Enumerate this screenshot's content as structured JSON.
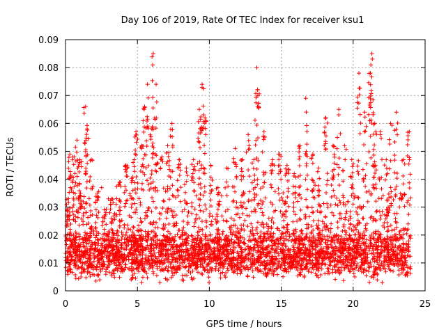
{
  "chart_data": {
    "type": "scatter",
    "title": "Day 106 of 2019, Rate Of TEC Index for receiver ksu1",
    "xlabel": "GPS time / hours",
    "ylabel": "ROTI / TECUs",
    "xlim": [
      0,
      25
    ],
    "ylim": [
      0,
      0.09
    ],
    "grid": true,
    "marker": "+",
    "color": "#ff0000",
    "x_ticks": [
      "0",
      "5",
      "10",
      "15",
      "20",
      "25"
    ],
    "y_ticks": [
      "0",
      "0.01",
      "0.02",
      "0.03",
      "0.04",
      "0.05",
      "0.06",
      "0.07",
      "0.08",
      "0.09"
    ],
    "x_range_of_data": [
      0,
      24
    ],
    "baseline_band": [
      0.007,
      0.018
    ],
    "peaks": [
      {
        "x": 0.2,
        "y": 0.033
      },
      {
        "x": 0.3,
        "y": 0.049
      },
      {
        "x": 0.6,
        "y": 0.048
      },
      {
        "x": 0.8,
        "y": 0.054
      },
      {
        "x": 1.0,
        "y": 0.047
      },
      {
        "x": 1.4,
        "y": 0.066
      },
      {
        "x": 1.5,
        "y": 0.058
      },
      {
        "x": 1.8,
        "y": 0.047
      },
      {
        "x": 2.2,
        "y": 0.035
      },
      {
        "x": 2.7,
        "y": 0.029
      },
      {
        "x": 3.2,
        "y": 0.033
      },
      {
        "x": 3.8,
        "y": 0.039
      },
      {
        "x": 4.2,
        "y": 0.045
      },
      {
        "x": 4.7,
        "y": 0.046
      },
      {
        "x": 4.9,
        "y": 0.057
      },
      {
        "x": 5.3,
        "y": 0.052
      },
      {
        "x": 5.5,
        "y": 0.066
      },
      {
        "x": 5.7,
        "y": 0.074
      },
      {
        "x": 6.0,
        "y": 0.058
      },
      {
        "x": 6.1,
        "y": 0.085
      },
      {
        "x": 6.3,
        "y": 0.074
      },
      {
        "x": 6.7,
        "y": 0.048
      },
      {
        "x": 7.1,
        "y": 0.052
      },
      {
        "x": 7.4,
        "y": 0.06
      },
      {
        "x": 7.9,
        "y": 0.047
      },
      {
        "x": 8.4,
        "y": 0.044
      },
      {
        "x": 8.9,
        "y": 0.047
      },
      {
        "x": 9.3,
        "y": 0.065
      },
      {
        "x": 9.5,
        "y": 0.074
      },
      {
        "x": 9.7,
        "y": 0.062
      },
      {
        "x": 10.1,
        "y": 0.045
      },
      {
        "x": 10.6,
        "y": 0.037
      },
      {
        "x": 11.2,
        "y": 0.044
      },
      {
        "x": 11.8,
        "y": 0.051
      },
      {
        "x": 12.3,
        "y": 0.047
      },
      {
        "x": 12.7,
        "y": 0.056
      },
      {
        "x": 13.1,
        "y": 0.047
      },
      {
        "x": 13.3,
        "y": 0.08
      },
      {
        "x": 13.35,
        "y": 0.072
      },
      {
        "x": 13.8,
        "y": 0.057
      },
      {
        "x": 14.4,
        "y": 0.047
      },
      {
        "x": 14.9,
        "y": 0.049
      },
      {
        "x": 15.4,
        "y": 0.045
      },
      {
        "x": 15.9,
        "y": 0.042
      },
      {
        "x": 16.3,
        "y": 0.052
      },
      {
        "x": 16.7,
        "y": 0.069
      },
      {
        "x": 17.2,
        "y": 0.049
      },
      {
        "x": 17.6,
        "y": 0.044
      },
      {
        "x": 18.1,
        "y": 0.062
      },
      {
        "x": 18.6,
        "y": 0.052
      },
      {
        "x": 19.0,
        "y": 0.065
      },
      {
        "x": 19.4,
        "y": 0.052
      },
      {
        "x": 19.9,
        "y": 0.047
      },
      {
        "x": 20.4,
        "y": 0.078
      },
      {
        "x": 20.8,
        "y": 0.064
      },
      {
        "x": 21.2,
        "y": 0.078
      },
      {
        "x": 21.3,
        "y": 0.085
      },
      {
        "x": 21.5,
        "y": 0.06
      },
      {
        "x": 21.9,
        "y": 0.057
      },
      {
        "x": 22.3,
        "y": 0.047
      },
      {
        "x": 22.6,
        "y": 0.06
      },
      {
        "x": 23.0,
        "y": 0.064
      },
      {
        "x": 23.5,
        "y": 0.047
      },
      {
        "x": 23.9,
        "y": 0.057
      }
    ]
  }
}
